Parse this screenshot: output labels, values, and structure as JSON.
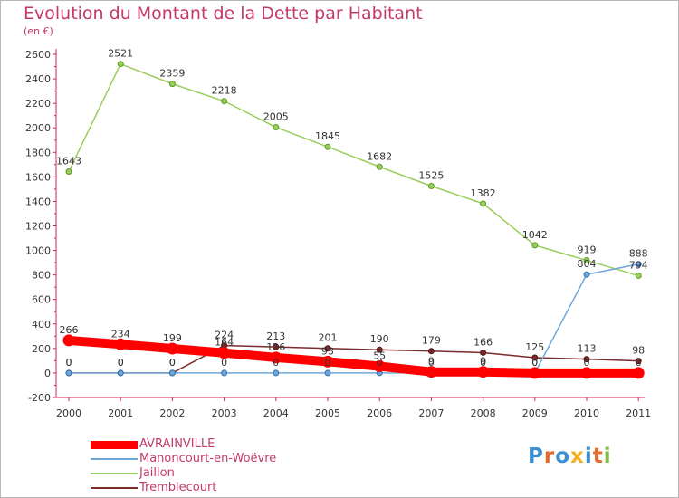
{
  "header": {
    "title": "Evolution du Montant de la Dette par Habitant",
    "subtitle": "(en €)"
  },
  "logo": {
    "text": "Proxiti",
    "letters": [
      {
        "ch": "P",
        "color": "#3b8fd1"
      },
      {
        "ch": "r",
        "color": "#e36a2c"
      },
      {
        "ch": "o",
        "color": "#3b8fd1"
      },
      {
        "ch": "x",
        "color": "#f0b020"
      },
      {
        "ch": "i",
        "color": "#3b8fd1"
      },
      {
        "ch": "t",
        "color": "#e36a2c"
      },
      {
        "ch": "i",
        "color": "#7cbf3c"
      }
    ]
  },
  "chart_data": {
    "type": "line",
    "title": "Evolution du Montant de la Dette par Habitant",
    "subtitle": "(en €)",
    "xlabel": "",
    "ylabel": "",
    "x": [
      "2000",
      "2001",
      "2002",
      "2003",
      "2004",
      "2005",
      "2006",
      "2007",
      "2008",
      "2009",
      "2010",
      "2011"
    ],
    "ylim": [
      -200,
      2600
    ],
    "yticks": [
      -200,
      0,
      200,
      400,
      600,
      800,
      1000,
      1200,
      1400,
      1600,
      1800,
      2000,
      2200,
      2400,
      2600
    ],
    "grid": false,
    "legend_position": "bottom-left",
    "series": [
      {
        "name": "AVRAINVILLE",
        "color": "#ff0000",
        "values": [
          266,
          234,
          199,
          164,
          126,
          93,
          55,
          9,
          9,
          0,
          0,
          0
        ],
        "labels": [
          "266",
          "234",
          "199",
          "164",
          "126",
          "93",
          "55",
          "9",
          "9",
          "0",
          "0",
          "0"
        ]
      },
      {
        "name": "Manoncourt-en-Woëvre",
        "color": "#6ea6d8",
        "values": [
          0,
          0,
          0,
          0,
          0,
          0,
          0,
          0,
          0,
          0,
          804,
          888
        ],
        "labels": [
          "0",
          "0",
          "0",
          "0",
          "0",
          "0",
          "0",
          "0",
          "0",
          "0",
          "804",
          "888"
        ]
      },
      {
        "name": "Jaillon",
        "color": "#9acd5e",
        "values": [
          1643,
          2521,
          2359,
          2218,
          2005,
          1845,
          1682,
          1525,
          1382,
          1042,
          919,
          794
        ],
        "labels": [
          "1643",
          "2521",
          "2359",
          "2218",
          "2005",
          "1845",
          "1682",
          "1525",
          "1382",
          "1042",
          "919",
          "794"
        ]
      },
      {
        "name": "Tremblecourt",
        "color": "#7b2b2b",
        "values": [
          0,
          0,
          0,
          224,
          213,
          201,
          190,
          179,
          166,
          125,
          113,
          98
        ],
        "labels": [
          "0",
          "0",
          "0",
          "224",
          "213",
          "201",
          "190",
          "179",
          "166",
          "125",
          "113",
          "98"
        ]
      }
    ]
  }
}
